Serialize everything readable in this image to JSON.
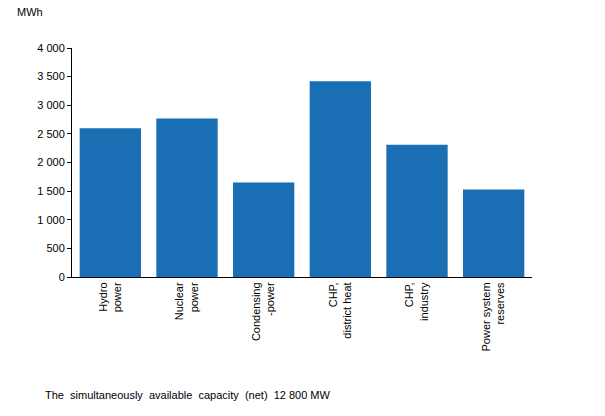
{
  "chart_data": {
    "type": "bar",
    "y_label": "MWh",
    "categories": [
      "Hydro\npower",
      "Nuclear\npower",
      "Condensing\n-power",
      "CHP,\ndistrict heat",
      "CHP,\nindustry",
      "Power system\nreserves"
    ],
    "values": [
      2600,
      2770,
      1650,
      3420,
      2310,
      1530
    ],
    "color": "#1a6fb4",
    "ylim": [
      0,
      4000
    ],
    "yticks": [
      0,
      500,
      {
        "value": 1000,
        "label": "1 000"
      },
      {
        "value": 1500,
        "label": "1 500"
      },
      {
        "value": 2000,
        "label": "2 000"
      },
      {
        "value": 2500,
        "label": "2 500"
      },
      {
        "value": 3000,
        "label": "3 000"
      },
      {
        "value": 3500,
        "label": "3 500"
      },
      {
        "value": 4000,
        "label": "4 000"
      }
    ],
    "grid": false,
    "annotations": [
      "The  simultaneously  available  capacity  (net)  12 800 MW"
    ]
  }
}
